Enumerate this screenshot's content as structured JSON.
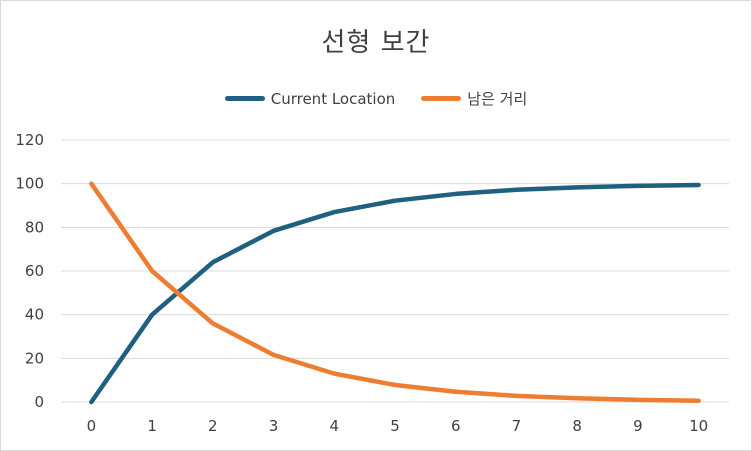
{
  "chart_data": {
    "type": "line",
    "title": "선형 보간",
    "x": [
      0,
      1,
      2,
      3,
      4,
      5,
      6,
      7,
      8,
      9,
      10
    ],
    "ylim": [
      0,
      120
    ],
    "yticks": [
      0,
      20,
      40,
      60,
      80,
      100,
      120
    ],
    "grid": true,
    "legend": "top",
    "series": [
      {
        "name": "Current Location",
        "color": "#1f5f7f",
        "values": [
          0,
          40,
          64,
          78.4,
          87,
          92.2,
          95.3,
          97.2,
          98.3,
          99,
          99.4
        ]
      },
      {
        "name": "남은 거리",
        "color": "#ed7d31",
        "values": [
          100,
          60,
          36,
          21.6,
          13,
          7.8,
          4.7,
          2.8,
          1.7,
          1,
          0.6
        ]
      }
    ]
  }
}
